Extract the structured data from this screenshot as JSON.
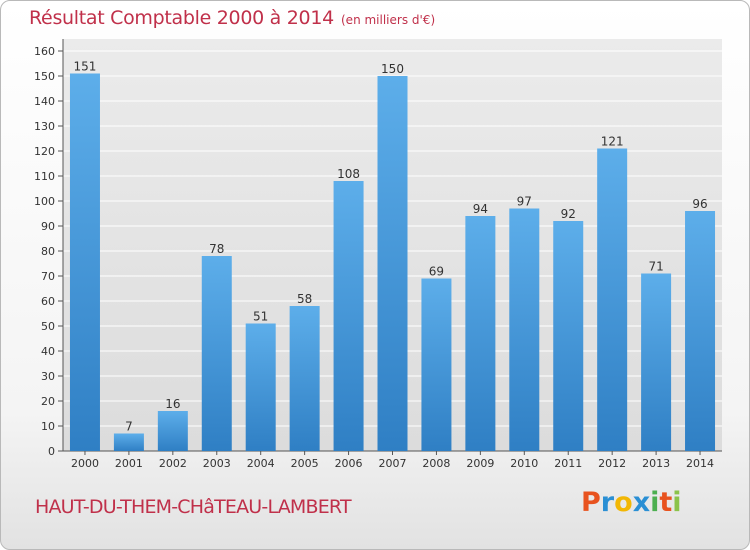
{
  "chart_data": {
    "type": "bar",
    "title": "Résultat Comptable 2000 à 2014",
    "subtitle": "(en milliers d'€)",
    "categories": [
      "2000",
      "2001",
      "2002",
      "2003",
      "2004",
      "2005",
      "2006",
      "2007",
      "2008",
      "2009",
      "2010",
      "2011",
      "2012",
      "2013",
      "2014"
    ],
    "values": [
      151,
      7,
      16,
      78,
      51,
      58,
      108,
      150,
      69,
      94,
      97,
      92,
      121,
      71,
      96
    ],
    "ylim": [
      0,
      160
    ],
    "yticks": [
      0,
      10,
      20,
      30,
      40,
      50,
      60,
      70,
      80,
      90,
      100,
      110,
      120,
      130,
      140,
      150,
      160
    ],
    "grid": true,
    "xlabel": "",
    "ylabel": ""
  },
  "footer": {
    "commune": "HAUT-DU-THEM-CHâTEAU-LAMBERT"
  },
  "logo": {
    "letters": [
      "P",
      "r",
      "o",
      "x",
      "i",
      "t",
      "i"
    ],
    "colors": [
      "#e8531f",
      "#2a8fd4",
      "#f2b705",
      "#2a8fd4",
      "#4caf50",
      "#e8531f",
      "#8bc34a"
    ]
  },
  "colors": {
    "bar_light": "#5daeea",
    "bar_dark": "#2f7fc4",
    "plot_bg": "#e4e4e4",
    "title": "#c0304a"
  }
}
